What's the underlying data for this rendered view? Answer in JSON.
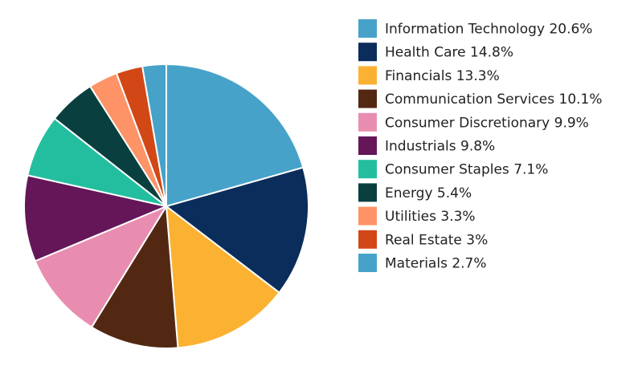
{
  "chart_data": {
    "type": "pie",
    "title": "",
    "legend_position": "right",
    "start_angle_deg": 0,
    "direction": "clockwise",
    "slices": [
      {
        "label": "Information Technology",
        "value": 20.6,
        "display": "20.6%",
        "color": "#47a2c9"
      },
      {
        "label": "Health Care",
        "value": 14.8,
        "display": "14.8%",
        "color": "#0b2d5b"
      },
      {
        "label": "Financials",
        "value": 13.3,
        "display": "13.3%",
        "color": "#fbb132"
      },
      {
        "label": "Communication Services",
        "value": 10.1,
        "display": "10.1%",
        "color": "#532813"
      },
      {
        "label": "Consumer Discretionary",
        "value": 9.9,
        "display": "9.9%",
        "color": "#e98db0"
      },
      {
        "label": "Industrials",
        "value": 9.8,
        "display": "9.8%",
        "color": "#641659"
      },
      {
        "label": "Consumer Staples",
        "value": 7.1,
        "display": "7.1%",
        "color": "#23bea0"
      },
      {
        "label": "Energy",
        "value": 5.4,
        "display": "5.4%",
        "color": "#0a3f3f"
      },
      {
        "label": "Utilities",
        "value": 3.3,
        "display": "3.3%",
        "color": "#fd9366"
      },
      {
        "label": "Real Estate",
        "value": 3.0,
        "display": "3%",
        "color": "#d24716"
      },
      {
        "label": "Materials",
        "value": 2.7,
        "display": "2.7%",
        "color": "#47a2c9"
      }
    ]
  }
}
